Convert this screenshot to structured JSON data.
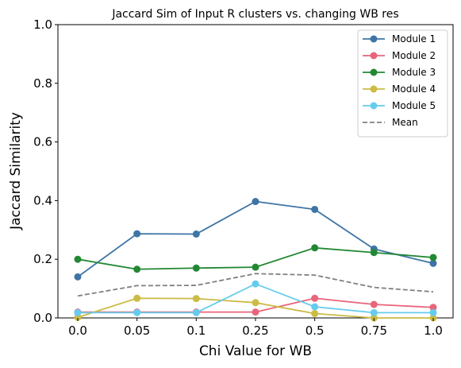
{
  "chart_data": {
    "type": "line",
    "title": "Jaccard Sim of Input R clusters vs. changing WB res",
    "xlabel": "Chi Value for WB",
    "ylabel": "Jaccard Similarity",
    "categories": [
      "0.0",
      "0.05",
      "0.1",
      "0.25",
      "0.5",
      "0.75",
      "1.0"
    ],
    "ylim": [
      0,
      1.0
    ],
    "yticks": [
      "0.0",
      "0.2",
      "0.4",
      "0.6",
      "0.8",
      "1.0"
    ],
    "grid": false,
    "legend_position": "top-right",
    "series": [
      {
        "name": "Module 1",
        "color": "#3f74a6",
        "style": "solid-marker",
        "values": [
          0.14,
          0.287,
          0.286,
          0.397,
          0.37,
          0.235,
          0.186
        ]
      },
      {
        "name": "Module 2",
        "color": "#e8657a",
        "style": "solid-marker",
        "values": [
          0.02,
          0.02,
          0.02,
          0.02,
          0.067,
          0.046,
          0.036
        ]
      },
      {
        "name": "Module 3",
        "color": "#228833",
        "style": "solid-marker",
        "values": [
          0.2,
          0.166,
          0.17,
          0.173,
          0.239,
          0.223,
          0.206
        ]
      },
      {
        "name": "Module 4",
        "color": "#ccbb44",
        "style": "solid-marker",
        "values": [
          0.002,
          0.067,
          0.066,
          0.052,
          0.015,
          0.0,
          0.0
        ]
      },
      {
        "name": "Module 5",
        "color": "#66ccee",
        "style": "solid-marker",
        "values": [
          0.018,
          0.018,
          0.018,
          0.116,
          0.038,
          0.018,
          0.018
        ]
      },
      {
        "name": "Mean",
        "color": "#808080",
        "style": "dashed",
        "values": [
          0.075,
          0.11,
          0.111,
          0.151,
          0.146,
          0.104,
          0.089
        ]
      }
    ]
  }
}
